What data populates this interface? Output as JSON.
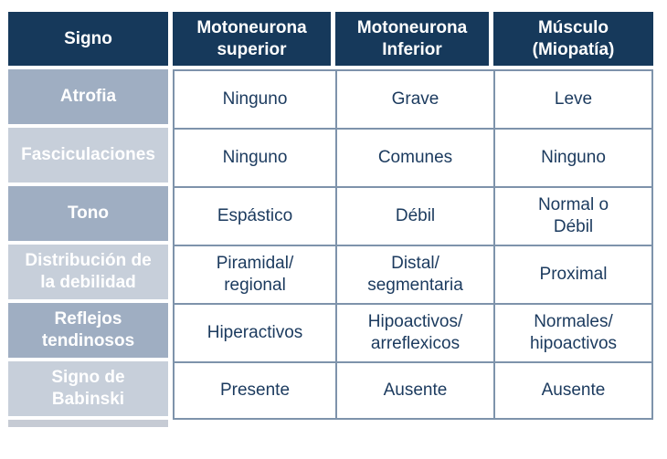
{
  "colors": {
    "header_bg": "#16395B",
    "label_row_dark": "#9FAEC2",
    "label_row_light": "#C7CFDA",
    "label_text": "#FFFFFF",
    "data_text": "#1B3A5E",
    "cell_border": "#7E93AB",
    "shadow": "#C6CBD4"
  },
  "table": {
    "headers": [
      "Signo",
      "Motoneurona\nsuperior",
      "Motoneurona\nInferior",
      "Músculo\n(Miopatía)"
    ],
    "rows": [
      {
        "sign": "Atrofia",
        "superior": "Ninguno",
        "inferior": "Grave",
        "muscle": "Leve"
      },
      {
        "sign": "Fasciculaciones",
        "superior": "Ninguno",
        "inferior": "Comunes",
        "muscle": "Ninguno"
      },
      {
        "sign": "Tono",
        "superior": "Espástico",
        "inferior": "Débil",
        "muscle": "Normal o\nDébil"
      },
      {
        "sign": "Distribución de\nla debilidad",
        "superior": "Piramidal/\nregional",
        "inferior": "Distal/\nsegmentaria",
        "muscle": "Proximal"
      },
      {
        "sign": "Reflejos\ntendinosos",
        "superior": "Hiperactivos",
        "inferior": "Hipoactivos/\narreflexicos",
        "muscle": "Normales/\nhipoactivos"
      },
      {
        "sign": "Signo de\nBabinski",
        "superior": "Presente",
        "inferior": "Ausente",
        "muscle": "Ausente"
      }
    ]
  },
  "chart_data": {
    "type": "table",
    "title": "",
    "columns": [
      "Signo",
      "Motoneurona superior",
      "Motoneurona Inferior",
      "Músculo (Miopatía)"
    ],
    "rows": [
      [
        "Atrofia",
        "Ninguno",
        "Grave",
        "Leve"
      ],
      [
        "Fasciculaciones",
        "Ninguno",
        "Comunes",
        "Ninguno"
      ],
      [
        "Tono",
        "Espástico",
        "Débil",
        "Normal o Débil"
      ],
      [
        "Distribución de la debilidad",
        "Piramidal/ regional",
        "Distal/ segmentaria",
        "Proximal"
      ],
      [
        "Reflejos tendinosos",
        "Hiperactivos",
        "Hipoactivos/ arreflexicos",
        "Normales/ hipoactivos"
      ],
      [
        "Signo de Babinski",
        "Presente",
        "Ausente",
        "Ausente"
      ]
    ]
  }
}
